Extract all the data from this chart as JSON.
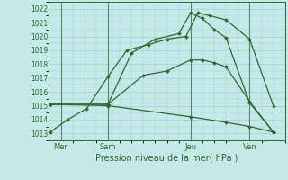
{
  "xlabel": "Pression niveau de la mer( hPa )",
  "bg_color": "#c5e8e8",
  "grid_color": "#a8d0d0",
  "line_color": "#2d6a2d",
  "ylim": [
    1012.5,
    1022.5
  ],
  "yticks": [
    1013,
    1014,
    1015,
    1016,
    1017,
    1018,
    1019,
    1020,
    1021,
    1022
  ],
  "xlim": [
    0,
    10
  ],
  "xtick_positions": [
    0.5,
    2.5,
    6.0,
    8.5
  ],
  "xtick_labels": [
    "Mer",
    "Sam",
    "Jeu",
    "Ven"
  ],
  "vline_positions": [
    0.5,
    2.5,
    6.0,
    8.5
  ],
  "series": [
    {
      "x": [
        0.05,
        0.8,
        1.6,
        2.5,
        3.3,
        4.2,
        5.0,
        5.8,
        6.3,
        6.8,
        7.5,
        8.5,
        9.5
      ],
      "y": [
        1013.1,
        1014.0,
        1014.8,
        1017.1,
        1019.0,
        1019.4,
        1019.8,
        1020.0,
        1021.7,
        1021.5,
        1021.2,
        1019.8,
        1015.0
      ]
    },
    {
      "x": [
        0.05,
        2.5,
        3.5,
        4.5,
        5.5,
        6.0,
        6.5,
        7.0,
        7.5,
        8.5,
        9.5
      ],
      "y": [
        1015.1,
        1015.1,
        1018.8,
        1019.8,
        1020.2,
        1021.7,
        1021.3,
        1020.5,
        1019.9,
        1015.2,
        1013.1
      ]
    },
    {
      "x": [
        0.05,
        2.5,
        4.0,
        5.0,
        6.0,
        6.5,
        7.0,
        7.5,
        8.5,
        9.5
      ],
      "y": [
        1015.1,
        1015.1,
        1017.2,
        1017.5,
        1018.3,
        1018.3,
        1018.1,
        1017.8,
        1015.3,
        1013.1
      ]
    },
    {
      "x": [
        0.05,
        2.5,
        6.0,
        7.5,
        8.5,
        9.5
      ],
      "y": [
        1015.1,
        1015.0,
        1014.2,
        1013.8,
        1013.5,
        1013.1
      ]
    }
  ],
  "figsize": [
    3.2,
    2.0
  ],
  "dpi": 100
}
